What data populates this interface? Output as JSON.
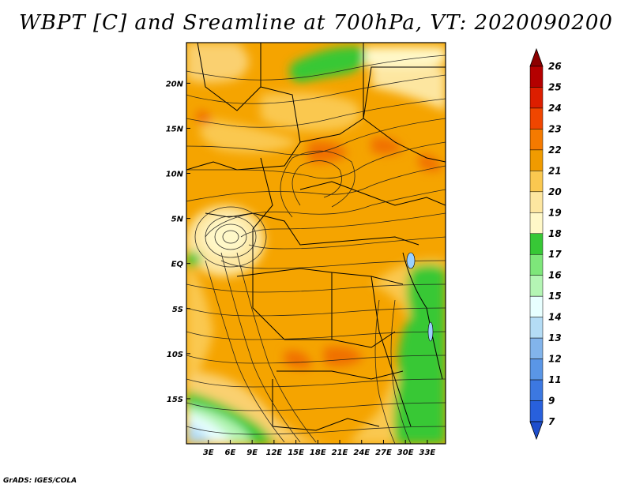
{
  "title": "WBPT [C] and Sreamline at 700hPa, VT: 2020090200",
  "footer": "GrADS: IGES/COLA",
  "map": {
    "lon_range": [
      0,
      35.5
    ],
    "lat_range": [
      -20,
      24.5
    ],
    "lon_ticks": [
      "3E",
      "6E",
      "9E",
      "12E",
      "15E",
      "18E",
      "21E",
      "24E",
      "27E",
      "30E",
      "33E"
    ],
    "lon_tick_values": [
      3,
      6,
      9,
      12,
      15,
      18,
      21,
      24,
      27,
      30,
      33
    ],
    "lat_ticks": [
      "20N",
      "15N",
      "10N",
      "5N",
      "EQ",
      "5S",
      "10S",
      "15S"
    ],
    "lat_tick_values": [
      20,
      15,
      10,
      5,
      0,
      -5,
      -10,
      -15
    ]
  },
  "colorbar": {
    "labels": [
      "26",
      "25",
      "24",
      "23",
      "22",
      "21",
      "20",
      "19",
      "18",
      "17",
      "16",
      "15",
      "14",
      "13",
      "12",
      "11",
      "9",
      "7"
    ],
    "colors": [
      "#8c0000",
      "#b40000",
      "#dc1e00",
      "#f04600",
      "#f57a00",
      "#f09b00",
      "#fac850",
      "#fde6a0",
      "#fff8c8",
      "#37c836",
      "#7ee67a",
      "#b4f5b4",
      "#e8ffff",
      "#b4dcf5",
      "#82b4eb",
      "#5a96e6",
      "#3c78e1",
      "#2860dc",
      "#1e4ecc"
    ]
  },
  "colors": {
    "land_base": "#f5a400",
    "streamline": "#1a1a1a",
    "border": "#000000"
  }
}
